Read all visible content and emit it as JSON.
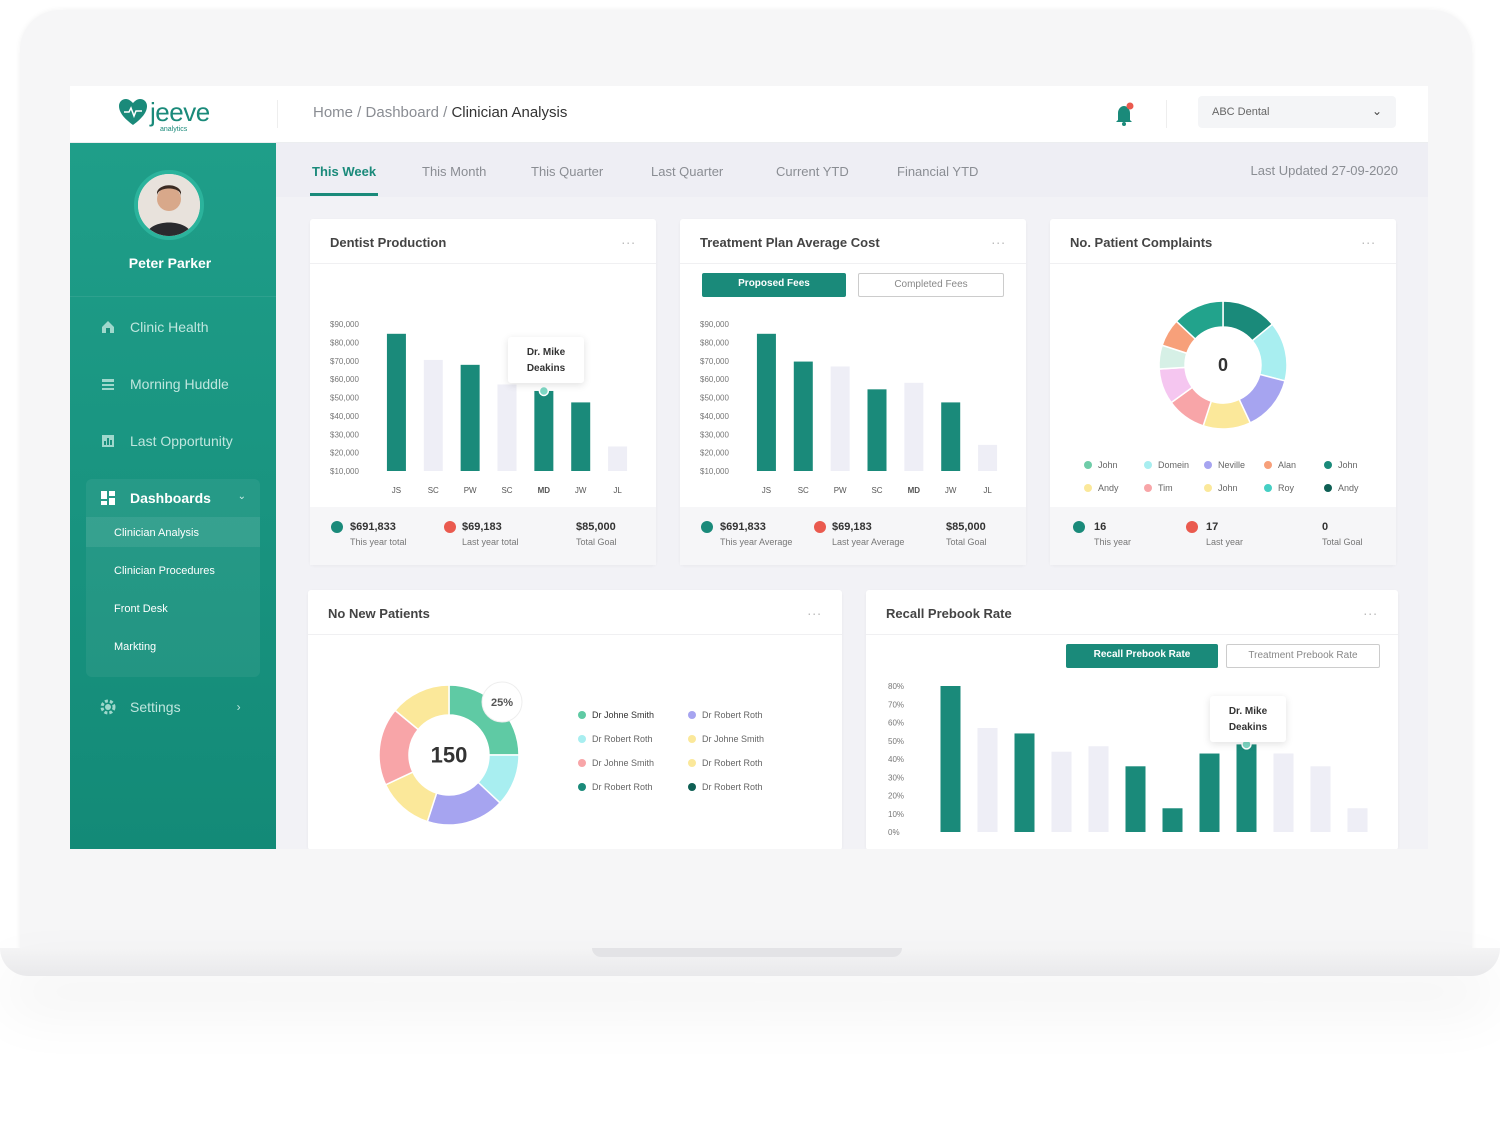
{
  "header": {
    "logo_name": "jeeve",
    "logo_sub": "analytics",
    "breadcrumb": {
      "home": "Home",
      "sep1": " / ",
      "dashboard": "Dashboard",
      "sep2": " / ",
      "current": "Clinician Analysis"
    },
    "clinic_select": "ABC Dental"
  },
  "sidebar": {
    "user_name": "Peter Parker",
    "items": [
      {
        "label": "Clinic Health",
        "icon": "home-icon"
      },
      {
        "label": "Morning Huddle",
        "icon": "list-icon"
      },
      {
        "label": "Last Opportunity",
        "icon": "chart-icon"
      }
    ],
    "dashboards": {
      "label": "Dashboards",
      "sub": [
        "Clinician Analysis",
        "Clinician Procedures",
        "Front Desk",
        "Markting"
      ]
    },
    "settings": "Settings"
  },
  "tabs": [
    "This Week",
    "This Month",
    "This Quarter",
    "Last Quarter",
    "Current YTD",
    "Financial YTD"
  ],
  "last_updated": "Last Updated 27-09-2020",
  "colors": {
    "accent": "#1a8a7a",
    "muted_bar": "#eeeef6",
    "red": "#ea5a4f"
  },
  "dentist_production": {
    "title": "Dentist Production",
    "menu": "...",
    "tooltip_line1": "Dr. Mike",
    "tooltip_line2": "Deakins",
    "stats": [
      {
        "value": "$691,833",
        "label": "This year total"
      },
      {
        "value": "$69,183",
        "label": "Last year total"
      },
      {
        "value": "$85,000",
        "label": "Total Goal"
      }
    ]
  },
  "treatment_plan": {
    "title": "Treatment Plan Average Cost",
    "menu": "...",
    "toggle_on": "Proposed Fees",
    "toggle_off": "Completed Fees",
    "stats": [
      {
        "value": "$691,833",
        "label": "This year Average"
      },
      {
        "value": "$69,183",
        "label": "Last year Average"
      },
      {
        "value": "$85,000",
        "label": "Total Goal"
      }
    ]
  },
  "complaints": {
    "title": "No. Patient Complaints",
    "menu": "...",
    "center": "0",
    "legend": [
      {
        "name": "John",
        "color": "#6fcca8"
      },
      {
        "name": "Domein",
        "color": "#a8eef0"
      },
      {
        "name": "Neville",
        "color": "#a6a4f0"
      },
      {
        "name": "Alan",
        "color": "#f7a07a"
      },
      {
        "name": "John",
        "color": "#1a8a7a"
      },
      {
        "name": "Andy",
        "color": "#fbe89a"
      },
      {
        "name": "Tim",
        "color": "#f8a5a8"
      },
      {
        "name": "John",
        "color": "#fbe89a"
      },
      {
        "name": "Roy",
        "color": "#45cfc4"
      },
      {
        "name": "Andy",
        "color": "#0e5f54"
      }
    ],
    "stats": [
      {
        "value": "16",
        "label": "This year"
      },
      {
        "value": "17",
        "label": "Last year"
      },
      {
        "value": "0",
        "label": "Total Goal"
      }
    ]
  },
  "new_patients": {
    "title": "No New Patients",
    "menu": "...",
    "center": "150",
    "badge": "25%",
    "legend": [
      {
        "name": "Dr Johne Smith",
        "color": "#5fcaa4"
      },
      {
        "name": "Dr Robert Roth",
        "color": "#a6a4f0"
      },
      {
        "name": "Dr Robert Roth",
        "color": "#a8eef0"
      },
      {
        "name": "Dr Johne Smith",
        "color": "#fbe89a"
      },
      {
        "name": "Dr Johne Smith",
        "color": "#f8a5a8"
      },
      {
        "name": "Dr Robert Roth",
        "color": "#fbe89a"
      },
      {
        "name": "Dr Robert Roth",
        "color": "#1a8a7a"
      },
      {
        "name": "Dr Robert Roth",
        "color": "#0e5f54"
      }
    ]
  },
  "recall": {
    "title": "Recall Prebook Rate",
    "menu": "...",
    "toggle_on": "Recall Prebook Rate",
    "toggle_off": "Treatment Prebook Rate",
    "tooltip_line1": "Dr. Mike",
    "tooltip_line2": "Deakins"
  },
  "chart_data": [
    {
      "type": "bar",
      "title": "Dentist Production",
      "categories": [
        "JS",
        "SC",
        "PW",
        "SC",
        "MD",
        "JW",
        "JL"
      ],
      "series": [
        {
          "values": [
            84000,
            68000,
            65000,
            53000,
            49000,
            42000,
            15000
          ]
        }
      ],
      "highlight": [
        true,
        false,
        true,
        false,
        true,
        true,
        false
      ],
      "yticks": [
        "$90,000",
        "$80,000",
        "$70,000",
        "$60,000",
        "$50,000",
        "$40,000",
        "$30,000",
        "$20,000",
        "$10,000"
      ],
      "ylim": [
        0,
        90000
      ]
    },
    {
      "type": "bar",
      "title": "Treatment Plan Average Cost",
      "categories": [
        "JS",
        "SC",
        "PW",
        "SC",
        "MD",
        "JW",
        "JL"
      ],
      "series": [
        {
          "values": [
            84000,
            67000,
            64000,
            50000,
            54000,
            42000,
            16000
          ]
        }
      ],
      "highlight": [
        true,
        true,
        false,
        true,
        false,
        true,
        false
      ],
      "yticks": [
        "$90,000",
        "$80,000",
        "$70,000",
        "$60,000",
        "$50,000",
        "$40,000",
        "$30,000",
        "$20,000",
        "$10,000"
      ],
      "ylim": [
        0,
        90000
      ]
    },
    {
      "type": "pie",
      "title": "No. Patient Complaints",
      "labels": [
        "John",
        "Roy",
        "Neville",
        "John",
        "Tim",
        "Andy",
        "Domein",
        "Alan",
        "Andy"
      ],
      "values": [
        14,
        15,
        14,
        12,
        10,
        9,
        6,
        7,
        13
      ],
      "colors": [
        "#1a8a7a",
        "#a8eef0",
        "#a6a4f0",
        "#fbe89a",
        "#f8a5a8",
        "#f5c6f0",
        "#d6f0e6",
        "#f7a07a",
        "#22a38c"
      ]
    },
    {
      "type": "pie",
      "title": "No New Patients",
      "labels": [
        "Dr Johne Smith",
        "Dr Robert Roth",
        "Dr Robert Roth",
        "Dr Johne Smith",
        "Dr Johne Smith",
        "Dr Robert Roth"
      ],
      "values": [
        25,
        12,
        18,
        13,
        18,
        14
      ],
      "colors": [
        "#5fcaa4",
        "#a8eef0",
        "#a6a4f0",
        "#fbe89a",
        "#f8a5a8",
        "#fbe89a"
      ]
    },
    {
      "type": "bar",
      "title": "Recall Prebook Rate",
      "series": [
        {
          "values": [
            80,
            57,
            54,
            44,
            47,
            36,
            13,
            43,
            48,
            43,
            36,
            13
          ]
        }
      ],
      "highlight": [
        true,
        false,
        true,
        false,
        false,
        true,
        true,
        true,
        true,
        false,
        false,
        false
      ],
      "yticks": [
        "80%",
        "70%",
        "60%",
        "50%",
        "40%",
        "30%",
        "20%",
        "10%",
        "0%"
      ],
      "ylim": [
        0,
        80
      ]
    }
  ]
}
